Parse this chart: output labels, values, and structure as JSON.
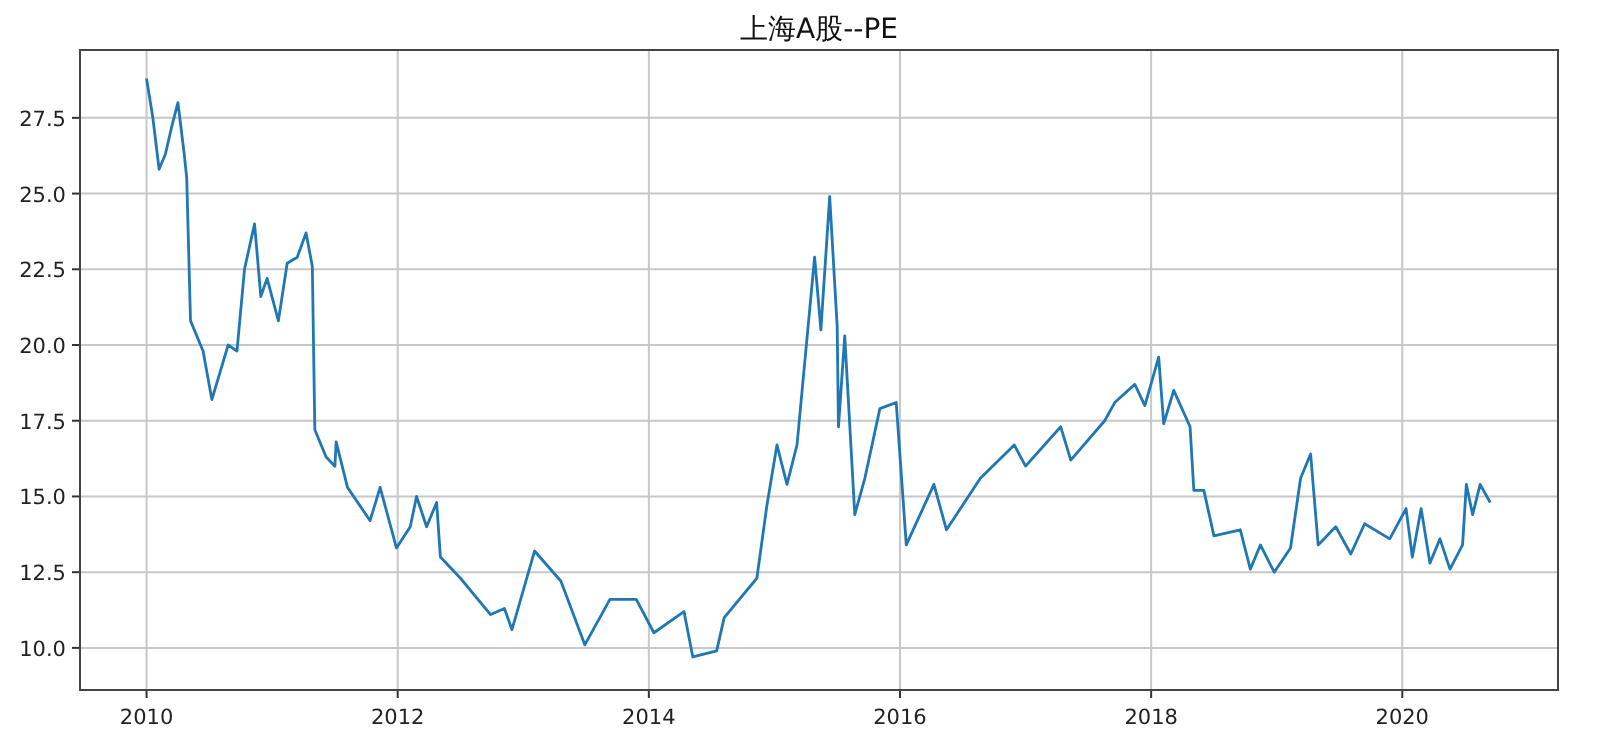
{
  "chart_data": {
    "type": "line",
    "title": "上海A股--PE",
    "x": [
      2010.0,
      2010.05,
      2010.1,
      2010.15,
      2010.2,
      2010.25,
      2010.3,
      2010.32,
      2010.35,
      2010.45,
      2010.52,
      2010.65,
      2010.72,
      2010.78,
      2010.86,
      2010.91,
      2010.96,
      2011.05,
      2011.12,
      2011.2,
      2011.27,
      2011.32,
      2011.34,
      2011.43,
      2011.5,
      2011.51,
      2011.6,
      2011.78,
      2011.86,
      2011.99,
      2012.1,
      2012.15,
      2012.23,
      2012.31,
      2012.34,
      2012.5,
      2012.7,
      2012.74,
      2012.85,
      2012.91,
      2013.09,
      2013.3,
      2013.49,
      2013.69,
      2013.9,
      2014.04,
      2014.28,
      2014.35,
      2014.54,
      2014.6,
      2014.86,
      2014.94,
      2015.02,
      2015.1,
      2015.18,
      2015.32,
      2015.37,
      2015.44,
      2015.5,
      2015.51,
      2015.56,
      2015.64,
      2015.72,
      2015.84,
      2015.97,
      2016.05,
      2016.27,
      2016.37,
      2016.64,
      2016.91,
      2017.0,
      2017.28,
      2017.36,
      2017.63,
      2017.71,
      2017.87,
      2017.95,
      2018.06,
      2018.1,
      2018.18,
      2018.31,
      2018.34,
      2018.42,
      2018.5,
      2018.71,
      2018.79,
      2018.87,
      2018.98,
      2019.11,
      2019.19,
      2019.27,
      2019.33,
      2019.47,
      2019.59,
      2019.7,
      2019.9,
      2020.03,
      2020.08,
      2020.15,
      2020.22,
      2020.3,
      2020.38,
      2020.48,
      2020.51,
      2020.56,
      2020.62,
      2020.7
    ],
    "series": [
      {
        "color": "#1f77b4",
        "values": [
          28.8,
          27.5,
          25.8,
          26.3,
          27.2,
          28.0,
          26.3,
          25.5,
          20.8,
          19.8,
          18.2,
          20.0,
          19.8,
          22.5,
          24.0,
          21.6,
          22.2,
          20.8,
          22.7,
          22.9,
          23.7,
          22.6,
          17.2,
          16.3,
          16.0,
          16.8,
          15.3,
          14.2,
          15.3,
          13.3,
          14.0,
          15.0,
          14.0,
          14.8,
          13.0,
          12.3,
          11.3,
          11.1,
          11.3,
          10.6,
          13.2,
          12.2,
          10.1,
          11.6,
          11.6,
          10.5,
          11.2,
          9.7,
          9.9,
          11.0,
          12.3,
          14.7,
          16.7,
          15.4,
          16.7,
          22.9,
          20.5,
          24.9,
          20.6,
          17.3,
          20.3,
          14.4,
          15.6,
          17.9,
          18.1,
          13.4,
          15.4,
          13.9,
          15.6,
          16.7,
          16.0,
          17.3,
          16.2,
          17.5,
          18.1,
          18.7,
          18.0,
          19.6,
          17.4,
          18.5,
          17.3,
          15.2,
          15.2,
          13.7,
          13.9,
          12.6,
          13.4,
          12.5,
          13.3,
          15.6,
          16.4,
          13.4,
          14.0,
          13.1,
          14.1,
          13.6,
          14.6,
          13.0,
          14.6,
          12.8,
          13.6,
          12.6,
          13.4,
          15.4,
          14.4,
          15.4,
          14.8
        ]
      }
    ],
    "xlim": [
      2009.47,
      2021.24
    ],
    "xticks": [
      2010,
      2012,
      2014,
      2016,
      2018,
      2020
    ],
    "ylim": [
      8.61,
      29.74
    ],
    "yticks": [
      {
        "value": 10,
        "label": "10.0"
      },
      {
        "value": 12.5,
        "label": "12.5"
      },
      {
        "value": 15,
        "label": "15.0"
      },
      {
        "value": 17.5,
        "label": "17.5"
      },
      {
        "value": 20,
        "label": "20.0"
      },
      {
        "value": 22.5,
        "label": "22.5"
      },
      {
        "value": 25,
        "label": "25.0"
      },
      {
        "value": 27.5,
        "label": "27.5"
      }
    ],
    "grid": true
  }
}
